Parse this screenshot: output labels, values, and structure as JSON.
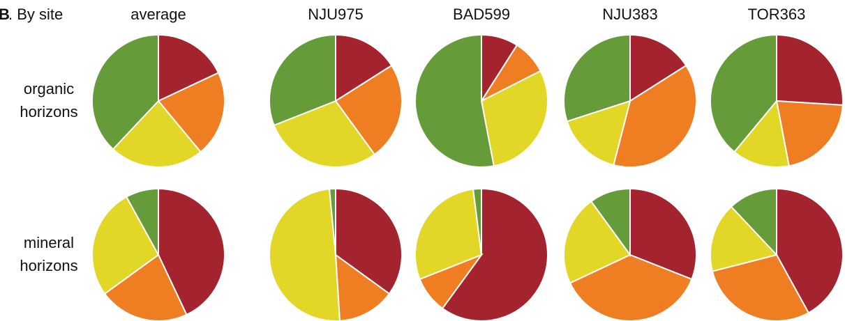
{
  "chart_data": {
    "type": "pie",
    "panel_label": "B",
    "title": ". By site",
    "columns": [
      "average",
      "NJU975",
      "BAD599",
      "NJU383",
      "TOR363"
    ],
    "colors": [
      "#a3242f",
      "#ef7d22",
      "#e2d626",
      "#659b38"
    ],
    "rows": [
      {
        "label": [
          "organic",
          "horizons"
        ],
        "values": [
          [
            18,
            21,
            23,
            38
          ],
          [
            16,
            24,
            29,
            31
          ],
          [
            9,
            8.5,
            29.5,
            53
          ],
          [
            16,
            38,
            16,
            30
          ],
          [
            26,
            21,
            14,
            39
          ]
        ]
      },
      {
        "label": [
          "mineral",
          "horizons"
        ],
        "values": [
          [
            43,
            22,
            27,
            8
          ],
          [
            35,
            14,
            49.5,
            1.5
          ],
          [
            60,
            9,
            29,
            2
          ],
          [
            31,
            37,
            22,
            10
          ],
          [
            42,
            29,
            17,
            12
          ]
        ]
      }
    ]
  }
}
